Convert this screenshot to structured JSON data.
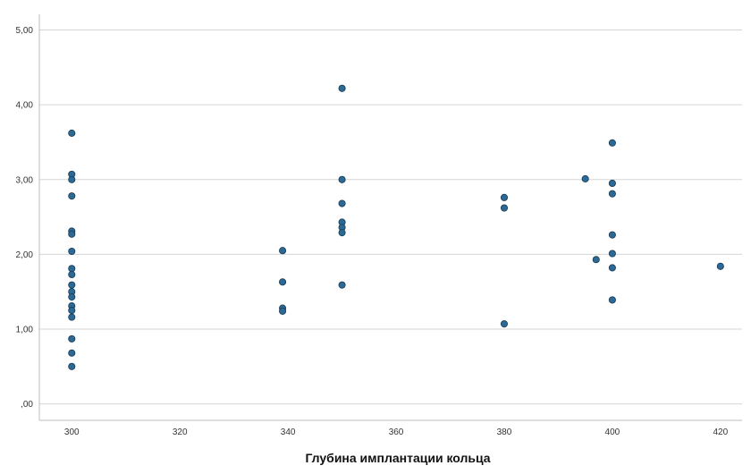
{
  "chart_data": {
    "type": "scatter",
    "title": "",
    "xlabel": "Глубина имплантации кольца",
    "ylabel": "",
    "xlim": [
      294,
      424
    ],
    "ylim": [
      -0.22,
      5.21
    ],
    "x_ticks": [
      300,
      320,
      340,
      360,
      380,
      400,
      420
    ],
    "x_tick_labels": [
      "300",
      "320",
      "340",
      "360",
      "380",
      "400",
      "420"
    ],
    "y_ticks": [
      0,
      1,
      2,
      3,
      4,
      5
    ],
    "y_tick_labels": [
      ",00",
      "1,00",
      "2,00",
      "3,00",
      "4,00",
      "5,00"
    ],
    "grid": "horizontal",
    "legend": "none",
    "marker_color": "#2b6a96",
    "marker_edge_color": "#1d3f5a",
    "grid_color": "#d6d6d6",
    "points": [
      {
        "x": 300,
        "y": 3.62
      },
      {
        "x": 300,
        "y": 3.07
      },
      {
        "x": 300,
        "y": 3.0
      },
      {
        "x": 300,
        "y": 2.78
      },
      {
        "x": 300,
        "y": 2.31
      },
      {
        "x": 300,
        "y": 2.27
      },
      {
        "x": 300,
        "y": 2.04
      },
      {
        "x": 300,
        "y": 1.81
      },
      {
        "x": 300,
        "y": 1.73
      },
      {
        "x": 300,
        "y": 1.59
      },
      {
        "x": 300,
        "y": 1.5
      },
      {
        "x": 300,
        "y": 1.43
      },
      {
        "x": 300,
        "y": 1.31
      },
      {
        "x": 300,
        "y": 1.25
      },
      {
        "x": 300,
        "y": 1.16
      },
      {
        "x": 300,
        "y": 0.87
      },
      {
        "x": 300,
        "y": 0.68
      },
      {
        "x": 300,
        "y": 0.5
      },
      {
        "x": 339,
        "y": 2.05
      },
      {
        "x": 339,
        "y": 1.63
      },
      {
        "x": 339,
        "y": 1.28
      },
      {
        "x": 339,
        "y": 1.24
      },
      {
        "x": 350,
        "y": 4.22
      },
      {
        "x": 350,
        "y": 3.0
      },
      {
        "x": 350,
        "y": 2.68
      },
      {
        "x": 350,
        "y": 2.43
      },
      {
        "x": 350,
        "y": 2.36
      },
      {
        "x": 350,
        "y": 2.29
      },
      {
        "x": 350,
        "y": 1.59
      },
      {
        "x": 380,
        "y": 2.76
      },
      {
        "x": 380,
        "y": 2.62
      },
      {
        "x": 380,
        "y": 1.07
      },
      {
        "x": 395,
        "y": 3.01
      },
      {
        "x": 397,
        "y": 1.93
      },
      {
        "x": 400,
        "y": 3.49
      },
      {
        "x": 400,
        "y": 2.95
      },
      {
        "x": 400,
        "y": 2.81
      },
      {
        "x": 400,
        "y": 2.26
      },
      {
        "x": 400,
        "y": 2.01
      },
      {
        "x": 400,
        "y": 1.82
      },
      {
        "x": 400,
        "y": 1.39
      },
      {
        "x": 420,
        "y": 1.84
      }
    ]
  }
}
